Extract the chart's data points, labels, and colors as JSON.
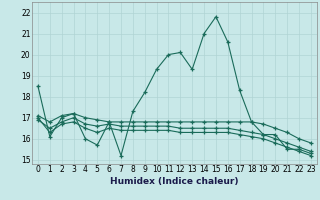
{
  "xlabel": "Humidex (Indice chaleur)",
  "xlim": [
    -0.5,
    23.5
  ],
  "ylim": [
    14.8,
    22.5
  ],
  "yticks": [
    15,
    16,
    17,
    18,
    19,
    20,
    21,
    22
  ],
  "xticks": [
    0,
    1,
    2,
    3,
    4,
    5,
    6,
    7,
    8,
    9,
    10,
    11,
    12,
    13,
    14,
    15,
    16,
    17,
    18,
    19,
    20,
    21,
    22,
    23
  ],
  "bg_color": "#c8e8e8",
  "grid_color": "#b0d4d4",
  "line_color": "#1a6b5a",
  "figsize": [
    3.2,
    2.0
  ],
  "dpi": 100,
  "series": [
    {
      "x": [
        0,
        1,
        2,
        3,
        4,
        5,
        6,
        7,
        8,
        9,
        10,
        11,
        12,
        13,
        14,
        15,
        16,
        17,
        18,
        19,
        20,
        21,
        22,
        23
      ],
      "y": [
        18.5,
        16.1,
        17.0,
        17.2,
        16.0,
        15.7,
        16.8,
        15.2,
        17.3,
        18.2,
        19.3,
        20.0,
        20.1,
        19.3,
        21.0,
        21.8,
        20.6,
        18.3,
        16.8,
        16.2,
        16.2,
        15.5,
        15.5,
        15.3
      ]
    },
    {
      "x": [
        0,
        1,
        2,
        3,
        4,
        5,
        6,
        7,
        8,
        9,
        10,
        11,
        12,
        13,
        14,
        15,
        16,
        17,
        18,
        19,
        20,
        21,
        22,
        23
      ],
      "y": [
        17.1,
        16.8,
        17.1,
        17.2,
        17.0,
        16.9,
        16.8,
        16.8,
        16.8,
        16.8,
        16.8,
        16.8,
        16.8,
        16.8,
        16.8,
        16.8,
        16.8,
        16.8,
        16.8,
        16.7,
        16.5,
        16.3,
        16.0,
        15.8
      ]
    },
    {
      "x": [
        0,
        1,
        2,
        3,
        4,
        5,
        6,
        7,
        8,
        9,
        10,
        11,
        12,
        13,
        14,
        15,
        16,
        17,
        18,
        19,
        20,
        21,
        22,
        23
      ],
      "y": [
        16.9,
        16.5,
        16.8,
        17.0,
        16.7,
        16.6,
        16.7,
        16.6,
        16.6,
        16.6,
        16.6,
        16.6,
        16.5,
        16.5,
        16.5,
        16.5,
        16.5,
        16.4,
        16.3,
        16.2,
        16.0,
        15.8,
        15.6,
        15.4
      ]
    },
    {
      "x": [
        0,
        1,
        2,
        3,
        4,
        5,
        6,
        7,
        8,
        9,
        10,
        11,
        12,
        13,
        14,
        15,
        16,
        17,
        18,
        19,
        20,
        21,
        22,
        23
      ],
      "y": [
        17.0,
        16.3,
        16.7,
        16.8,
        16.5,
        16.3,
        16.5,
        16.4,
        16.4,
        16.4,
        16.4,
        16.4,
        16.3,
        16.3,
        16.3,
        16.3,
        16.3,
        16.2,
        16.1,
        16.0,
        15.8,
        15.6,
        15.4,
        15.2
      ]
    }
  ]
}
